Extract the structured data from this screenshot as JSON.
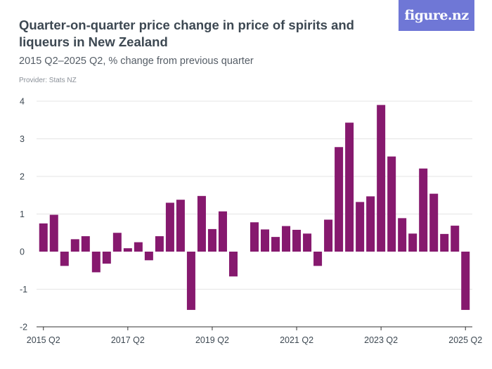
{
  "header": {
    "title": "Quarter-on-quarter price change in price of spirits and liqueurs in New Zealand",
    "subtitle": "2015 Q2–2025 Q2, % change from previous quarter",
    "provider": "Provider: Stats NZ",
    "logo": "figure.nz"
  },
  "colors": {
    "bar": "#86196e",
    "axis": "#333333",
    "grid": "#e5e5e5"
  },
  "chart_data": {
    "type": "bar",
    "title": "Quarter-on-quarter price change in price of spirits and liqueurs in New Zealand",
    "xlabel": "",
    "ylabel": "% change from previous quarter",
    "ylim": [
      -2,
      4
    ],
    "yticks": [
      4,
      3,
      2,
      1,
      0,
      -1,
      -2
    ],
    "ytick_labels": [
      "4",
      "3",
      "2",
      "1",
      "0",
      "-1",
      "-2"
    ],
    "xtick_labels": [
      "2015 Q2",
      "2017 Q2",
      "2019 Q2",
      "2021 Q2",
      "2023 Q2",
      "2025 Q2"
    ],
    "xtick_indices": [
      0,
      8,
      16,
      24,
      32,
      40
    ],
    "categories": [
      "2015 Q2",
      "2015 Q3",
      "2015 Q4",
      "2016 Q1",
      "2016 Q2",
      "2016 Q3",
      "2016 Q4",
      "2017 Q1",
      "2017 Q2",
      "2017 Q3",
      "2017 Q4",
      "2018 Q1",
      "2018 Q2",
      "2018 Q3",
      "2018 Q4",
      "2019 Q1",
      "2019 Q2",
      "2019 Q3",
      "2019 Q4",
      "2020 Q1",
      "2020 Q2",
      "2020 Q3",
      "2020 Q4",
      "2021 Q1",
      "2021 Q2",
      "2021 Q3",
      "2021 Q4",
      "2022 Q1",
      "2022 Q2",
      "2022 Q3",
      "2022 Q4",
      "2023 Q1",
      "2023 Q2",
      "2023 Q3",
      "2023 Q4",
      "2024 Q1",
      "2024 Q2",
      "2024 Q3",
      "2024 Q4",
      "2025 Q1",
      "2025 Q2"
    ],
    "values": [
      0.75,
      0.98,
      -0.38,
      0.33,
      0.41,
      -0.55,
      -0.32,
      0.5,
      0.09,
      0.25,
      -0.23,
      0.41,
      1.3,
      1.38,
      -1.55,
      1.48,
      0.6,
      1.07,
      -0.66,
      0.0,
      0.78,
      0.59,
      0.39,
      0.68,
      0.58,
      0.48,
      -0.38,
      0.85,
      2.78,
      3.43,
      1.32,
      1.47,
      3.9,
      2.53,
      0.89,
      0.48,
      2.21,
      1.54,
      0.47,
      0.69,
      -1.55
    ]
  }
}
